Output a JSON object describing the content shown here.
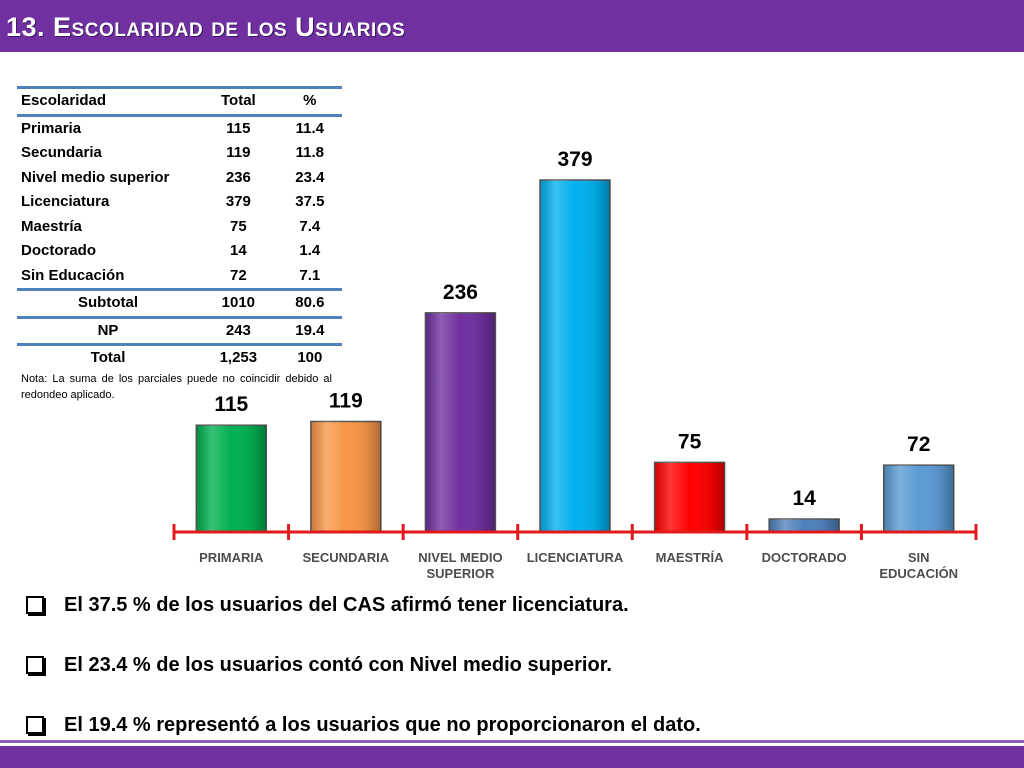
{
  "header": {
    "title": "13. Escolaridad de los Usuarios",
    "color": "#7030a0"
  },
  "table": {
    "headers": [
      "Escolaridad",
      "Total",
      "%"
    ],
    "rows": [
      [
        "Primaria",
        "115",
        "11.4"
      ],
      [
        "Secundaria",
        "119",
        "11.8"
      ],
      [
        "Nivel medio superior",
        "236",
        "23.4"
      ],
      [
        "Licenciatura",
        "379",
        "37.5"
      ],
      [
        "Maestría",
        "75",
        "7.4"
      ],
      [
        "Doctorado",
        "14",
        "1.4"
      ],
      [
        "Sin Educación",
        "72",
        "7.1"
      ]
    ],
    "summary": [
      [
        "Subtotal",
        "1010",
        "80.6"
      ],
      [
        "NP",
        "243",
        "19.4"
      ],
      [
        "Total",
        "1,253",
        "100"
      ]
    ],
    "note": "Nota: La suma de los parciales puede no coincidir debido al redondeo aplicado."
  },
  "chart_data": {
    "type": "bar",
    "categories": [
      "PRIMARIA",
      "SECUNDARIA",
      "NIVEL MEDIO SUPERIOR",
      "LICENCIATURA",
      "MAESTRÍA",
      "DOCTORADO",
      "SIN EDUCACIÓN"
    ],
    "category_lines": [
      [
        "PRIMARIA"
      ],
      [
        "SECUNDARIA"
      ],
      [
        "NIVEL MEDIO",
        "SUPERIOR"
      ],
      [
        "LICENCIATURA"
      ],
      [
        "MAESTRÍA"
      ],
      [
        "DOCTORADO"
      ],
      [
        "SIN",
        "EDUCACIÓN"
      ]
    ],
    "values": [
      115,
      119,
      236,
      379,
      75,
      14,
      72
    ],
    "colors": [
      "#00b050",
      "#f79646",
      "#7030a0",
      "#00b0f0",
      "#ff0000",
      "#4f81bd",
      "#5b9bd5"
    ],
    "axis_color": "#e31a1c",
    "title": "",
    "xlabel": "",
    "ylabel": ""
  },
  "bullets": [
    "El 37.5 % de los usuarios del CAS afirmó tener licenciatura.",
    "El 23.4 % de los usuarios contó con Nivel medio superior.",
    "El 19.4 % representó a los usuarios que no proporcionaron el dato."
  ]
}
